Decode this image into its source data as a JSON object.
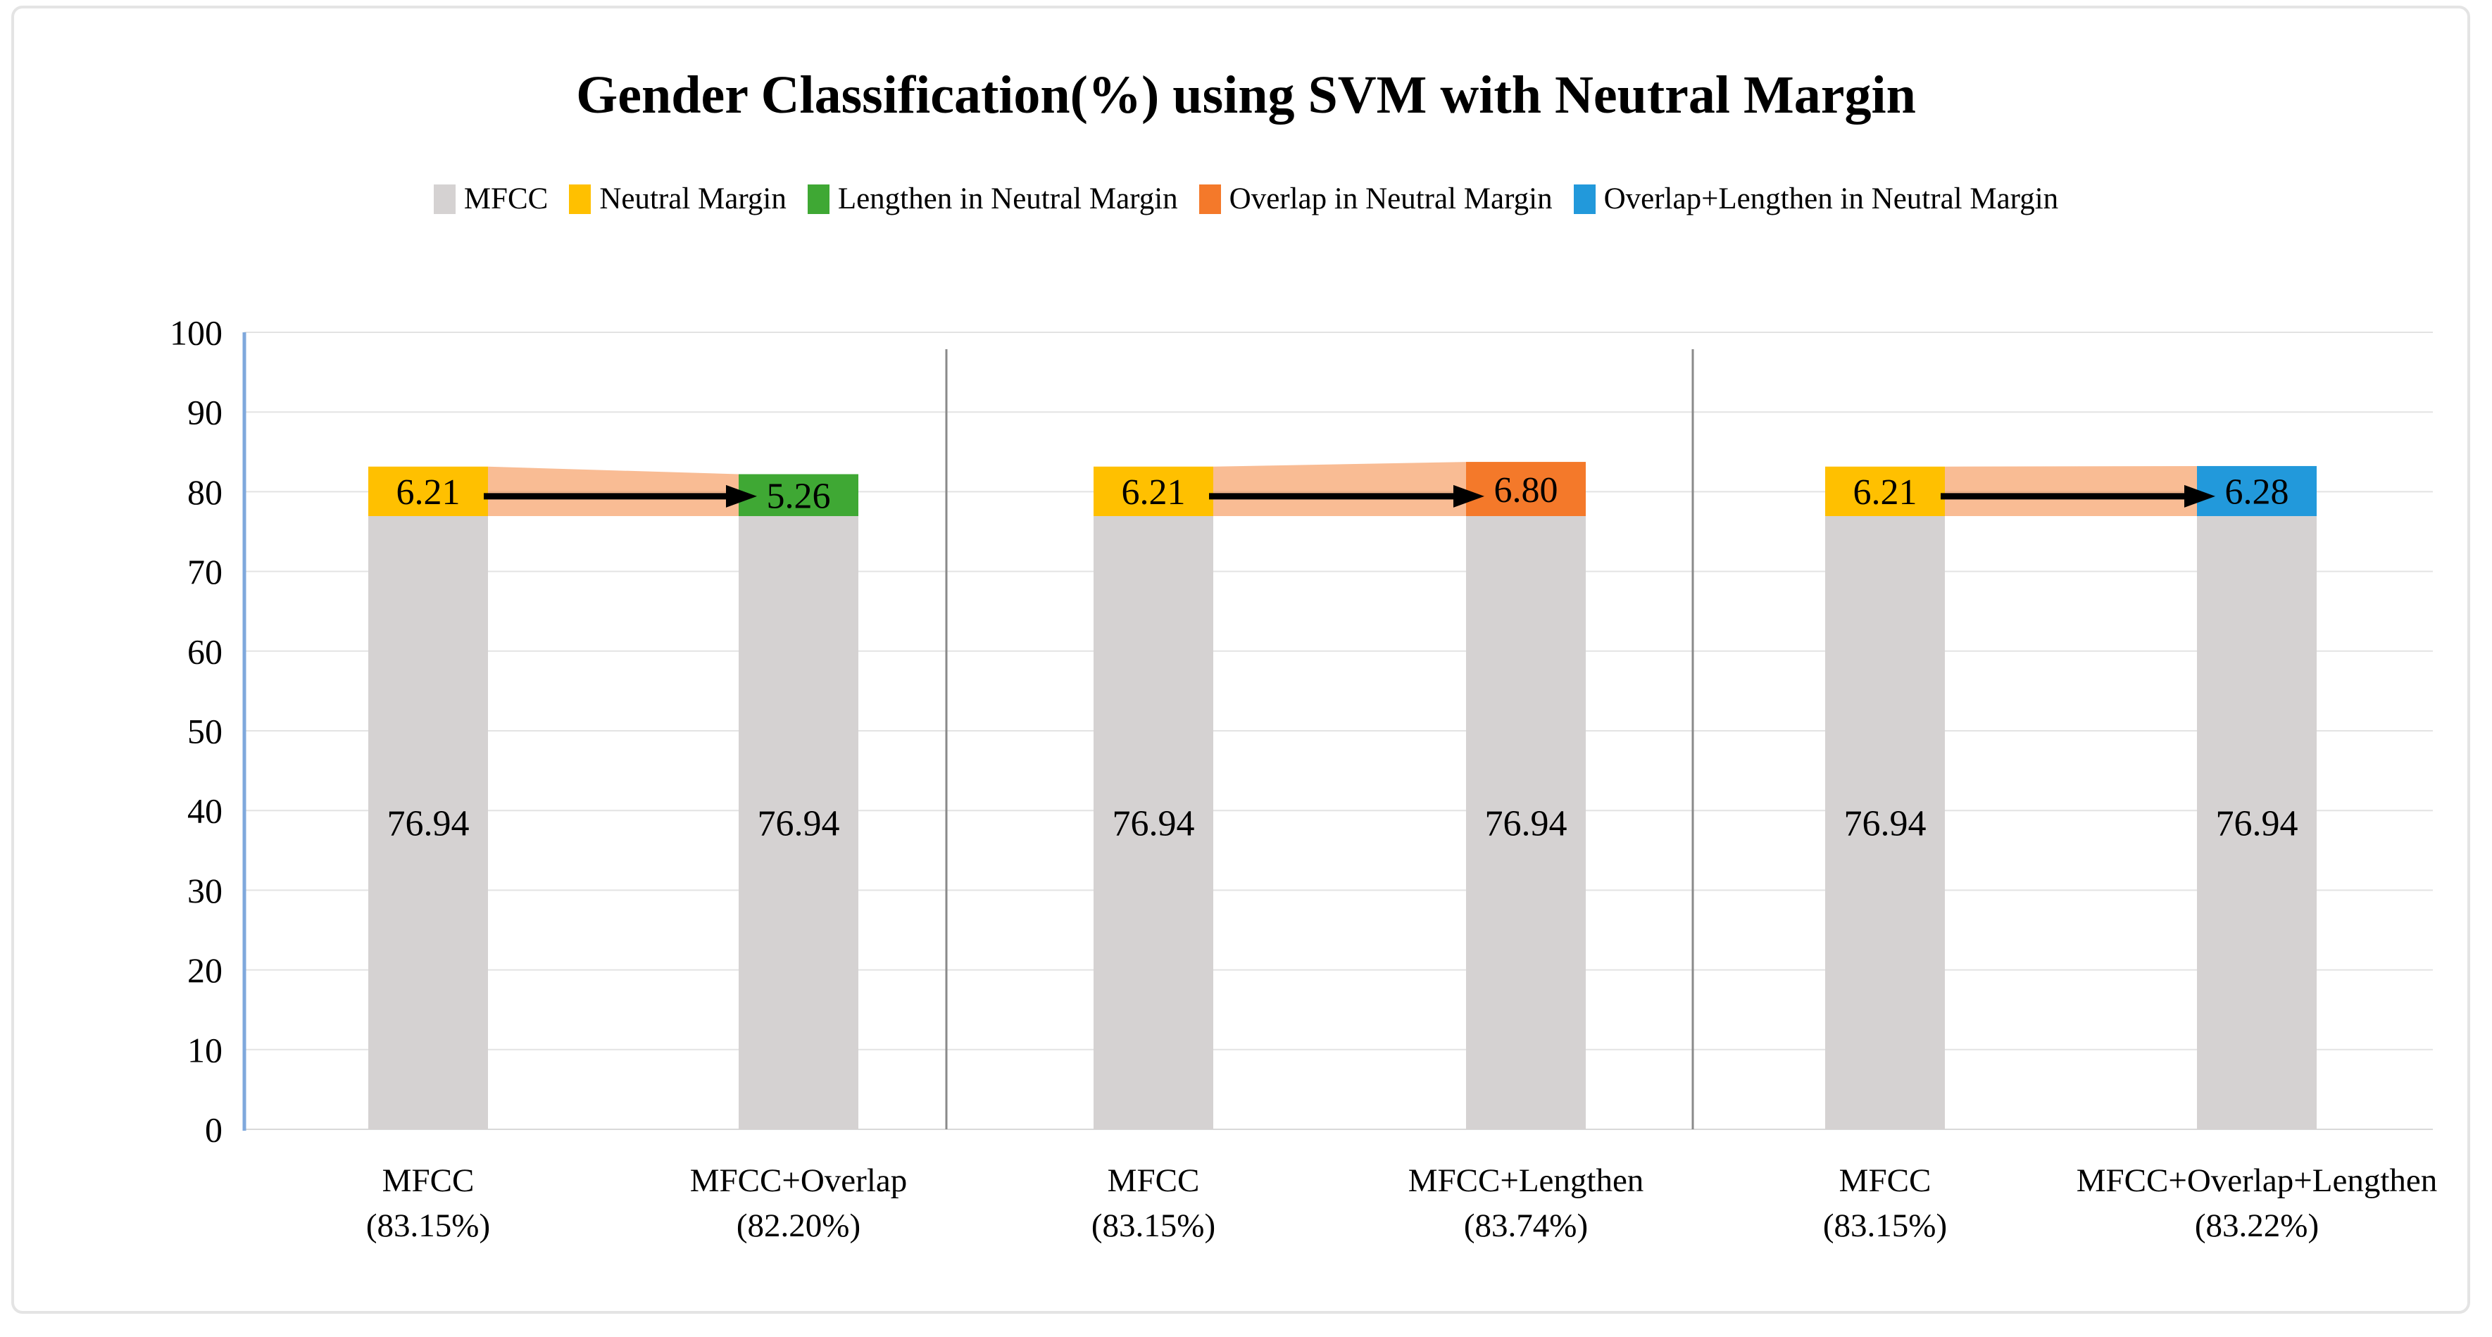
{
  "figure": {
    "background": "#FFFFFF",
    "border_color": "#E4E4E4"
  },
  "chart_data": {
    "type": "bar",
    "stacked": true,
    "title": "Gender Classification(%) using SVM with Neutral Margin",
    "xlabel": "",
    "ylabel": "",
    "ylim": [
      0,
      100
    ],
    "yticks": [
      0,
      10,
      20,
      30,
      40,
      50,
      60,
      70,
      80,
      90,
      100
    ],
    "grid": true,
    "legend_position": "top",
    "legend": [
      {
        "label": "MFCC",
        "color": "#D5D2D2"
      },
      {
        "label": "Neutral Margin",
        "color": "#FFC000"
      },
      {
        "label": "Lengthen in Neutral Margin",
        "color": "#3FA834"
      },
      {
        "label": "Overlap in Neutral Margin",
        "color": "#F4792A"
      },
      {
        "label": "Overlap+Lengthen in Neutral Margin",
        "color": "#2299DB"
      }
    ],
    "groups": [
      {
        "bars": [
          {
            "category": "MFCC",
            "category_note": "(83.15%)",
            "segments": [
              {
                "series": "MFCC",
                "value": 76.94
              },
              {
                "series": "Neutral Margin",
                "value": 6.21
              }
            ]
          },
          {
            "category": "MFCC+Overlap",
            "category_note": "(82.20%)",
            "segments": [
              {
                "series": "MFCC",
                "value": 76.94
              },
              {
                "series": "Lengthen in Neutral Margin",
                "value": 5.26
              }
            ]
          }
        ],
        "connector_arrow": true
      },
      {
        "bars": [
          {
            "category": "MFCC",
            "category_note": "(83.15%)",
            "segments": [
              {
                "series": "MFCC",
                "value": 76.94
              },
              {
                "series": "Neutral Margin",
                "value": 6.21
              }
            ]
          },
          {
            "category": "MFCC+Lengthen",
            "category_note": "(83.74%)",
            "segments": [
              {
                "series": "MFCC",
                "value": 76.94
              },
              {
                "series": "Overlap in Neutral Margin",
                "value": 6.8
              }
            ]
          }
        ],
        "connector_arrow": true
      },
      {
        "bars": [
          {
            "category": "MFCC",
            "category_note": "(83.15%)",
            "segments": [
              {
                "series": "MFCC",
                "value": 76.94
              },
              {
                "series": "Neutral Margin",
                "value": 6.21
              }
            ]
          },
          {
            "category": "MFCC+Overlap+Lengthen",
            "category_note": "(83.22%)",
            "segments": [
              {
                "series": "MFCC",
                "value": 76.94
              },
              {
                "series": "Overlap+Lengthen in Neutral Margin",
                "value": 6.28
              }
            ]
          }
        ],
        "connector_arrow": true
      }
    ],
    "colors": {
      "axis_line": "#7FA8DC",
      "gridline": "#E3E3E3",
      "zero_line": "#D9D9D9",
      "separator": "#8A8A8A",
      "connector_fill": "#F4792A",
      "arrow": "#000000",
      "text": "#000000"
    },
    "connector_opacity": 0.5
  }
}
